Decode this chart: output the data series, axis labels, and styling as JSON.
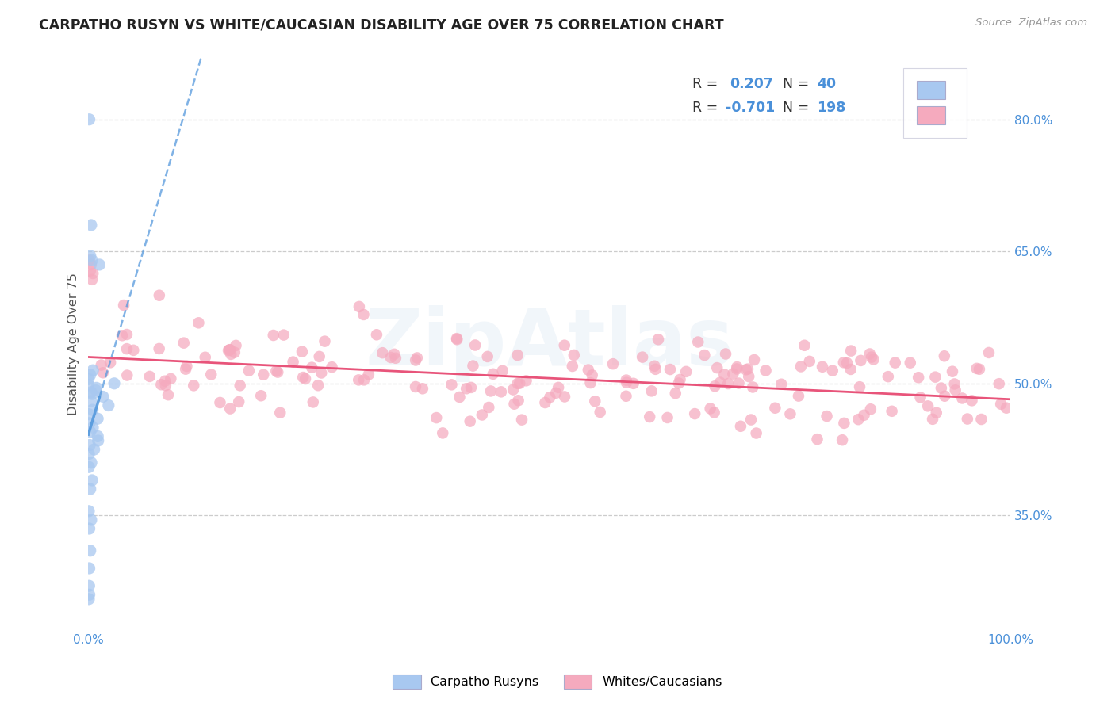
{
  "title": "CARPATHO RUSYN VS WHITE/CAUCASIAN DISABILITY AGE OVER 75 CORRELATION CHART",
  "source": "Source: ZipAtlas.com",
  "ylabel": "Disability Age Over 75",
  "xlim": [
    0.0,
    1.0
  ],
  "ylim": [
    0.22,
    0.87
  ],
  "y_ticks_right": [
    0.35,
    0.5,
    0.65,
    0.8
  ],
  "y_tick_labels_right": [
    "35.0%",
    "50.0%",
    "65.0%",
    "80.0%"
  ],
  "blue_color": "#A8C8F0",
  "pink_color": "#F5AABE",
  "blue_line_color": "#5599DD",
  "pink_line_color": "#E8547A",
  "grid_color": "#CCCCCC",
  "background_color": "#FFFFFF",
  "watermark": "ZipAtlas",
  "accent_color": "#4A90D9",
  "blue_intercept": 0.442,
  "blue_slope": 3.5,
  "pink_intercept": 0.53,
  "pink_slope": -0.048,
  "blue_N": 40,
  "pink_N": 198
}
